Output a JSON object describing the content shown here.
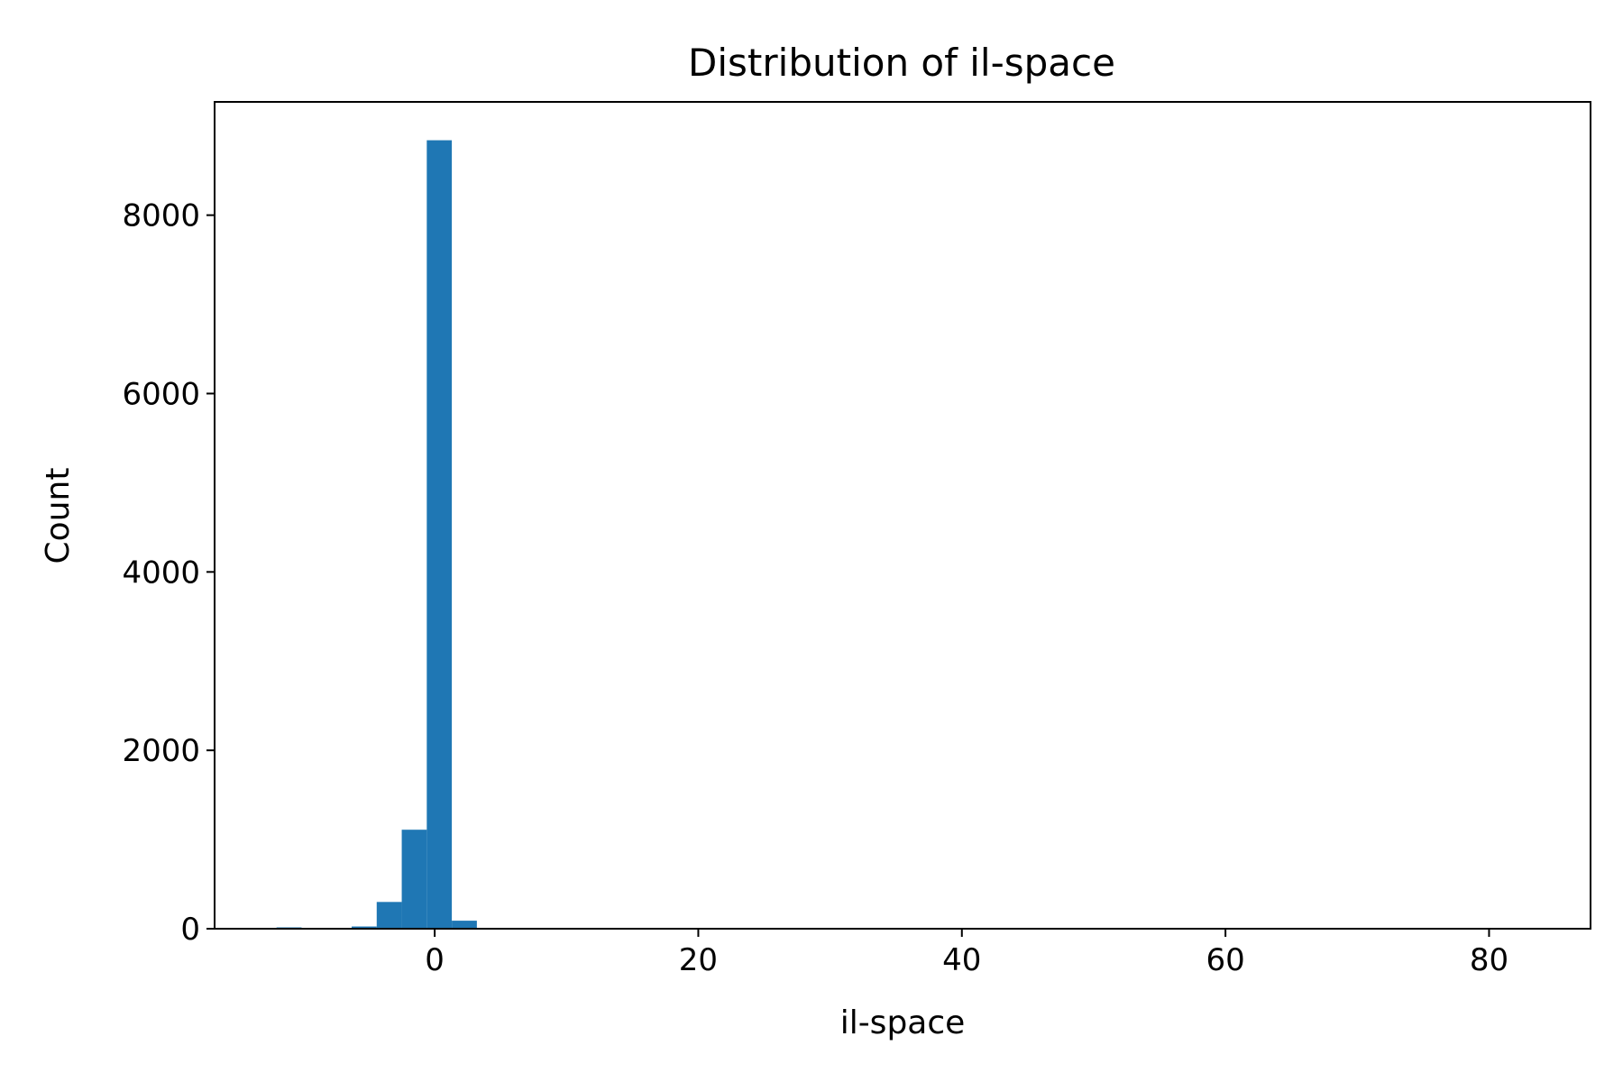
{
  "chart_data": {
    "type": "bar",
    "title": "Distribution of il-space",
    "xlabel": "il-space",
    "ylabel": "Count",
    "xlim": [
      -16.7,
      87.7
    ],
    "ylim": [
      0,
      9270
    ],
    "grid": false,
    "x_ticks": [
      0,
      20,
      40,
      60,
      80
    ],
    "x_tick_labels": [
      "0",
      "20",
      "40",
      "60",
      "80"
    ],
    "y_ticks": [
      0,
      2000,
      4000,
      6000,
      8000
    ],
    "y_tick_labels": [
      "0",
      "2000",
      "4000",
      "6000",
      "8000"
    ],
    "bin_width": 1.9,
    "bins": [
      {
        "x0": -12.0,
        "x1": -10.1,
        "count": 15
      },
      {
        "x0": -10.1,
        "x1": -8.2,
        "count": 3
      },
      {
        "x0": -8.2,
        "x1": -6.3,
        "count": 5
      },
      {
        "x0": -6.3,
        "x1": -4.4,
        "count": 25
      },
      {
        "x0": -4.4,
        "x1": -2.5,
        "count": 300
      },
      {
        "x0": -2.5,
        "x1": -0.6,
        "count": 1110
      },
      {
        "x0": -0.6,
        "x1": 1.3,
        "count": 8840
      },
      {
        "x0": 1.3,
        "x1": 3.2,
        "count": 90
      },
      {
        "x0": 3.2,
        "x1": 5.1,
        "count": 2
      },
      {
        "x0": 5.1,
        "x1": 7.0,
        "count": 1
      }
    ],
    "color": "#1f77b4"
  }
}
